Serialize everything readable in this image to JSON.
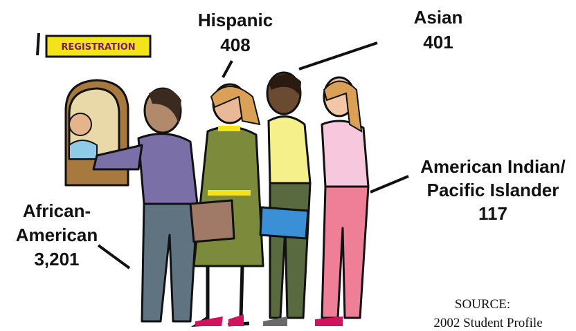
{
  "sign": "REGISTRATION",
  "groups": [
    {
      "name_lines": [
        "Hispanic"
      ],
      "count": "408"
    },
    {
      "name_lines": [
        "Asian"
      ],
      "count": "401"
    },
    {
      "name_lines": [
        "American Indian/",
        "Pacific Islander"
      ],
      "count": "117"
    },
    {
      "name_lines": [
        "African-",
        "American"
      ],
      "count": "3,201"
    }
  ],
  "source_lines": [
    "SOURCE:",
    "2002 Student Profile"
  ]
}
